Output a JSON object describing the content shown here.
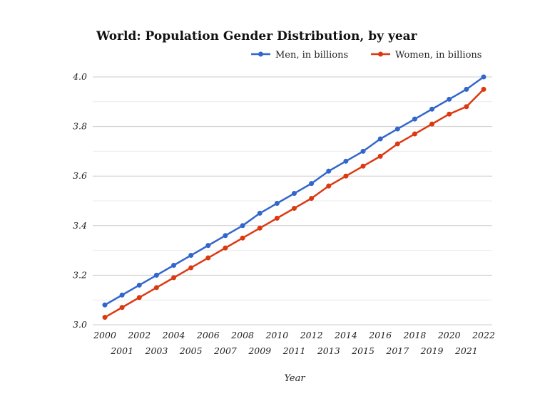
{
  "chart_data": {
    "type": "line",
    "title": "World: Population Gender Distribution, by year",
    "xlabel": "Year",
    "ylabel": "",
    "x": [
      2000,
      2001,
      2002,
      2003,
      2004,
      2005,
      2006,
      2007,
      2008,
      2009,
      2010,
      2011,
      2012,
      2013,
      2014,
      2015,
      2016,
      2017,
      2018,
      2019,
      2020,
      2021,
      2022
    ],
    "ylim": [
      3.0,
      4.0
    ],
    "yticks": [
      "3.0",
      "3.2",
      "3.4",
      "3.6",
      "3.8",
      "4.0"
    ],
    "grid": true,
    "legend_position": "top-right",
    "series": [
      {
        "name": "Men, in billions",
        "color": "#3366cc",
        "values": [
          3.08,
          3.12,
          3.16,
          3.2,
          3.24,
          3.28,
          3.32,
          3.36,
          3.4,
          3.45,
          3.49,
          3.53,
          3.57,
          3.62,
          3.66,
          3.7,
          3.75,
          3.79,
          3.83,
          3.87,
          3.91,
          3.95,
          4.0
        ]
      },
      {
        "name": "Women, in billions",
        "color": "#dc3912",
        "values": [
          3.03,
          3.07,
          3.11,
          3.15,
          3.19,
          3.23,
          3.27,
          3.31,
          3.35,
          3.39,
          3.43,
          3.47,
          3.51,
          3.56,
          3.6,
          3.64,
          3.68,
          3.73,
          3.77,
          3.81,
          3.85,
          3.88,
          3.95
        ]
      }
    ]
  }
}
